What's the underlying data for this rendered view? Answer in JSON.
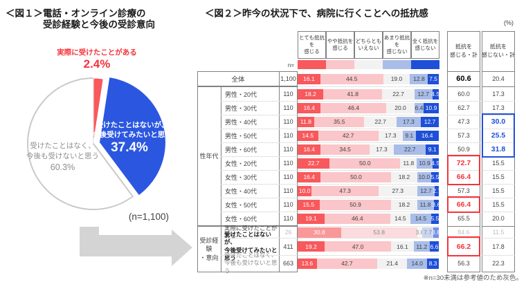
{
  "fig1": {
    "title_line1": "＜図１＞電話・オンライン診療の",
    "title_line2": "受診経験と今後の受診意向",
    "n_label": "(n=1,100)",
    "slices": [
      {
        "name": "experienced",
        "label": "実際に受けたことがある",
        "value": 2.4,
        "value_label": "2.4%",
        "color": "#F8595C"
      },
      {
        "name": "want-to-try",
        "label": "受けたことはないが、\n今後受けてみたいと思う",
        "value": 37.4,
        "value_label": "37.4%",
        "color": "#2B57E0"
      },
      {
        "name": "never",
        "label": "受けたことはなく、\n今後も受けないと思う",
        "value": 60.3,
        "value_label": "60.3%",
        "color": "#FFFFFF"
      }
    ]
  },
  "fig2": {
    "title": "＜図２＞昨今の状況下で、病院に行くことへの抵抗感",
    "percent_label": "(%)",
    "n_header": "n=",
    "legend": [
      {
        "label": "とても抵抗を\n感じる",
        "color": "#F8595C"
      },
      {
        "label": "やや抵抗を\n感じる",
        "color": "#FAC6C9"
      },
      {
        "label": "どちらとも\nいえない",
        "color": "#F2F2F2"
      },
      {
        "label": "あまり抵抗を\n感じない",
        "color": "#A9BDE8"
      },
      {
        "label": "全く抵抗を\n感じない",
        "color": "#1E4FD8"
      }
    ],
    "summary_headers": [
      "抵抗を\n感じる・計",
      "抵抗を\n感じない・計"
    ],
    "group_labels": [
      {
        "key": "sex_age",
        "label": "性年代"
      },
      {
        "key": "experience",
        "label": "受診経験\n・意向"
      }
    ],
    "rows": [
      {
        "label": "全体",
        "n": "1,100",
        "values": [
          "16.1",
          "44.5",
          "19.0",
          "12.8",
          "7.5"
        ],
        "feel": "60.6",
        "not_feel": "20.4",
        "section": "total",
        "feel_style": "bold-black"
      },
      {
        "label": "男性・20代",
        "n": "110",
        "values": [
          "18.2",
          "41.8",
          "22.7",
          "12.7",
          "4.5"
        ],
        "feel": "60.0",
        "not_feel": "17.3",
        "section": "sex_age"
      },
      {
        "label": "男性・30代",
        "n": "110",
        "values": [
          "16.4",
          "46.4",
          "20.0",
          "6.4",
          "10.9"
        ],
        "feel": "62.7",
        "not_feel": "17.3",
        "section": "sex_age"
      },
      {
        "label": "男性・40代",
        "n": "110",
        "values": [
          "11.8",
          "35.5",
          "22.7",
          "17.3",
          "12.7"
        ],
        "feel": "47.3",
        "not_feel": "30.0",
        "section": "sex_age",
        "not_feel_style": "hl-blue"
      },
      {
        "label": "男性・50代",
        "n": "110",
        "values": [
          "14.5",
          "42.7",
          "17.3",
          "9.1",
          "16.4"
        ],
        "feel": "57.3",
        "not_feel": "25.5",
        "section": "sex_age",
        "not_feel_style": "hl-blue"
      },
      {
        "label": "男性・60代",
        "n": "110",
        "values": [
          "16.4",
          "34.5",
          "17.3",
          "22.7",
          "9.1"
        ],
        "feel": "50.9",
        "not_feel": "31.8",
        "section": "sex_age",
        "not_feel_style": "hl-blue"
      },
      {
        "label": "女性・20代",
        "n": "110",
        "values": [
          "22.7",
          "50.0",
          "11.8",
          "10.9",
          "4.5"
        ],
        "feel": "72.7",
        "not_feel": "15.5",
        "section": "sex_age",
        "feel_style": "hl-red"
      },
      {
        "label": "女性・30代",
        "n": "110",
        "values": [
          "16.4",
          "50.0",
          "18.2",
          "10.0",
          "5.5"
        ],
        "feel": "66.4",
        "not_feel": "15.5",
        "section": "sex_age",
        "feel_style": "hl-red"
      },
      {
        "label": "女性・40代",
        "n": "110",
        "values": [
          "10.0",
          "47.3",
          "27.3",
          "12.7",
          "2.7"
        ],
        "feel": "57.3",
        "not_feel": "15.5",
        "section": "sex_age"
      },
      {
        "label": "女性・50代",
        "n": "110",
        "values": [
          "15.5",
          "50.9",
          "18.2",
          "11.8",
          "3.6"
        ],
        "feel": "66.4",
        "not_feel": "15.5",
        "section": "sex_age",
        "feel_style": "hl-red"
      },
      {
        "label": "女性・60代",
        "n": "110",
        "values": [
          "19.1",
          "46.4",
          "14.5",
          "14.5",
          "5.5"
        ],
        "feel": "65.5",
        "not_feel": "20.0",
        "section": "sex_age"
      },
      {
        "label": "実際に受けたことがある",
        "n": "26",
        "values": [
          "30.8",
          "53.8",
          "3.8",
          "7.7",
          "3.8"
        ],
        "feel": "84.6",
        "not_feel": "11.5",
        "section": "experience",
        "reference": true
      },
      {
        "label": "受けたことはないが、\n今後受けてみたいと思う",
        "n": "411",
        "values": [
          "19.2",
          "47.0",
          "16.1",
          "11.2",
          "6.6"
        ],
        "feel": "66.2",
        "not_feel": "17.8",
        "section": "experience",
        "label_bold": true,
        "feel_style": "hl-red"
      },
      {
        "label": "受けたことはなく、\n今後も受けないと思う",
        "n": "663",
        "values": [
          "13.6",
          "42.7",
          "21.4",
          "14.0",
          "8.3"
        ],
        "feel": "56.3",
        "not_feel": "22.3",
        "section": "experience",
        "label_gray": true
      }
    ],
    "footnote": "※n=30未満は参考値のため灰色。",
    "accent": {
      "red": "#F5333B",
      "blue": "#1E4FD8",
      "gray": "#BFBFBF"
    }
  },
  "chart_data": [
    {
      "type": "pie",
      "title": "電話・オンライン診療の受診経験と今後の受診意向",
      "n": 1100,
      "unit": "%",
      "labels": [
        "実際に受けたことがある",
        "受けたことはないが、今後受けてみたいと思う",
        "受けたことはなく、今後も受けないと思う"
      ],
      "values": [
        2.4,
        37.4,
        60.3
      ],
      "colors": [
        "#F8595C",
        "#2B57E0",
        "#FFFFFF"
      ]
    },
    {
      "type": "bar",
      "subtype": "horizontal-stacked-100pct",
      "title": "昨今の状況下で、病院に行くことへの抵抗感",
      "unit": "%",
      "categories": [
        "全体",
        "男性・20代",
        "男性・30代",
        "男性・40代",
        "男性・50代",
        "男性・60代",
        "女性・20代",
        "女性・30代",
        "女性・40代",
        "女性・50代",
        "女性・60代",
        "実際に受けたことがある",
        "受けたことはないが、今後受けてみたいと思う",
        "受けたことはなく、今後も受けないと思う"
      ],
      "n": [
        1100,
        110,
        110,
        110,
        110,
        110,
        110,
        110,
        110,
        110,
        110,
        26,
        411,
        663
      ],
      "series": [
        {
          "name": "とても抵抗を感じる",
          "values": [
            16.1,
            18.2,
            16.4,
            11.8,
            14.5,
            16.4,
            22.7,
            16.4,
            10.0,
            15.5,
            19.1,
            30.8,
            19.2,
            13.6
          ]
        },
        {
          "name": "やや抵抗を感じる",
          "values": [
            44.5,
            41.8,
            46.4,
            35.5,
            42.7,
            34.5,
            50.0,
            50.0,
            47.3,
            50.9,
            46.4,
            53.8,
            47.0,
            42.7
          ]
        },
        {
          "name": "どちらともいえない",
          "values": [
            19.0,
            22.7,
            20.0,
            22.7,
            17.3,
            17.3,
            11.8,
            18.2,
            27.3,
            18.2,
            14.5,
            3.8,
            16.1,
            21.4
          ]
        },
        {
          "name": "あまり抵抗を感じない",
          "values": [
            12.8,
            12.7,
            6.4,
            17.3,
            9.1,
            22.7,
            10.9,
            10.0,
            12.7,
            11.8,
            14.5,
            7.7,
            11.2,
            14.0
          ]
        },
        {
          "name": "全く抵抗を感じない",
          "values": [
            7.5,
            4.5,
            10.9,
            12.7,
            16.4,
            9.1,
            4.5,
            5.5,
            2.7,
            3.6,
            5.5,
            3.8,
            6.6,
            8.3
          ]
        }
      ],
      "summary": {
        "feel_total": [
          60.6,
          60.0,
          62.7,
          47.3,
          57.3,
          50.9,
          72.7,
          66.4,
          57.3,
          66.4,
          65.5,
          84.6,
          66.2,
          56.3
        ],
        "not_feel_total": [
          20.4,
          17.3,
          17.3,
          30.0,
          25.5,
          31.8,
          15.5,
          15.5,
          15.5,
          15.5,
          20.0,
          11.5,
          17.8,
          22.3
        ]
      },
      "note": "※n=30未満は参考値のため灰色。",
      "legend_position": "top"
    }
  ]
}
